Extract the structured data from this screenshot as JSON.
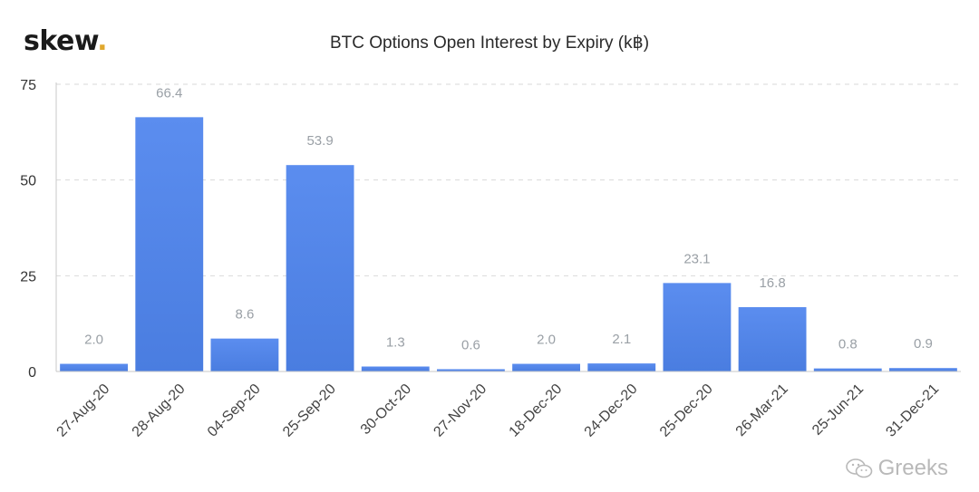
{
  "logo": {
    "text": "skew",
    "dot": "."
  },
  "watermark": {
    "text": "Greeks",
    "icon": "wechat-icon"
  },
  "colors": {
    "bar": "#5b8def",
    "bar_dark": "#4a7de0",
    "grid": "#d9d9d9",
    "label": "#9aa0a6"
  },
  "chart_data": {
    "type": "bar",
    "title": "BTC Options Open Interest by Expiry (k฿)",
    "xlabel": "",
    "ylabel": "",
    "categories": [
      "27-Aug-20",
      "28-Aug-20",
      "04-Sep-20",
      "25-Sep-20",
      "30-Oct-20",
      "27-Nov-20",
      "18-Dec-20",
      "24-Dec-20",
      "25-Dec-20",
      "26-Mar-21",
      "25-Jun-21",
      "31-Dec-21"
    ],
    "values": [
      2.0,
      66.4,
      8.6,
      53.9,
      1.3,
      0.6,
      2.0,
      2.1,
      23.1,
      16.8,
      0.8,
      0.9
    ],
    "data_labels": [
      "2.0",
      "66.4",
      "8.6",
      "53.9",
      "1.3",
      "0.6",
      "2.0",
      "2.1",
      "23.1",
      "16.8",
      "0.8",
      "0.9"
    ],
    "yticks": [
      0,
      25,
      50,
      75
    ],
    "ylim": [
      0,
      75
    ],
    "grid": true,
    "legend": "none"
  }
}
